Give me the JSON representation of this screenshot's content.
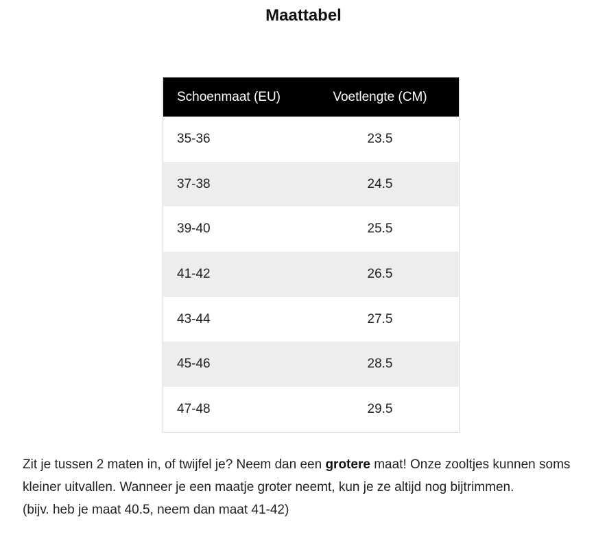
{
  "header": {
    "title": "Maattabel"
  },
  "table": {
    "columns": [
      "Schoenmaat (EU)",
      "Voetlengte (CM)"
    ],
    "rows": [
      [
        "35-36",
        23.5
      ],
      [
        "37-38",
        24.5
      ],
      [
        "39-40",
        25.5
      ],
      [
        "41-42",
        26.5
      ],
      [
        "43-44",
        27.5
      ],
      [
        "45-46",
        28.5
      ],
      [
        "47-48",
        29.5
      ]
    ]
  },
  "note": {
    "before": "Zit je tussen 2 maten in, of twijfel je? Neem dan een ",
    "bold": "grotere",
    "after": " maat! Onze zooltjes kunnen soms kleiner uitvallen. Wanneer je een maatje groter neemt, kun je ze altijd nog bijtrimmen.",
    "example": "(bijv. heb je maat 40.5, neem dan maat 41-42)"
  }
}
